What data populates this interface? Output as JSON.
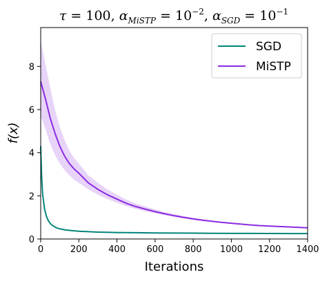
{
  "chart_data": {
    "type": "line",
    "title": "τ = 100, α_MiSTP = 10^−2, α_SGD = 10^−1",
    "title_parts": {
      "tau_sym": "τ",
      "tau_val": " = 100, ",
      "alpha1_sym": "α",
      "alpha1_sub": "MiSTP",
      "alpha1_eq": " = 10",
      "alpha1_exp": "−2",
      "sep": ", ",
      "alpha2_sym": "α",
      "alpha2_sub": "SGD",
      "alpha2_eq": " = 10",
      "alpha2_exp": "−1"
    },
    "xlabel": "Iterations",
    "ylabel": "f(x)",
    "xlim": [
      0,
      1400
    ],
    "ylim": [
      0,
      9.8
    ],
    "xticks": [
      0,
      200,
      400,
      600,
      800,
      1000,
      1200,
      1400
    ],
    "yticks": [
      0,
      2,
      4,
      6,
      8
    ],
    "grid": false,
    "legend_position": "top-right",
    "series": [
      {
        "name": "SGD",
        "color": "#00857a",
        "x": [
          0,
          5,
          10,
          20,
          30,
          40,
          50,
          60,
          80,
          100,
          130,
          160,
          200,
          250,
          300,
          400,
          500,
          600,
          700,
          800,
          900,
          1000,
          1100,
          1200,
          1300,
          1400
        ],
        "y": [
          4.3,
          2.9,
          2.1,
          1.4,
          1.05,
          0.85,
          0.72,
          0.64,
          0.53,
          0.47,
          0.42,
          0.39,
          0.36,
          0.34,
          0.32,
          0.3,
          0.29,
          0.28,
          0.275,
          0.27,
          0.265,
          0.26,
          0.258,
          0.255,
          0.252,
          0.25
        ]
      },
      {
        "name": "MiSTP",
        "color": "#8a2be2",
        "band_color": "#d9b8f5",
        "x": [
          0,
          25,
          50,
          75,
          100,
          125,
          150,
          175,
          200,
          250,
          300,
          350,
          400,
          450,
          500,
          550,
          600,
          650,
          700,
          750,
          800,
          850,
          900,
          950,
          1000,
          1050,
          1100,
          1150,
          1200,
          1250,
          1300,
          1350,
          1400
        ],
        "y": [
          7.3,
          6.5,
          5.6,
          4.9,
          4.3,
          3.85,
          3.5,
          3.25,
          3.05,
          2.6,
          2.3,
          2.05,
          1.85,
          1.65,
          1.5,
          1.38,
          1.27,
          1.17,
          1.08,
          1.0,
          0.93,
          0.87,
          0.82,
          0.77,
          0.73,
          0.69,
          0.65,
          0.62,
          0.6,
          0.58,
          0.56,
          0.54,
          0.52
        ],
        "y_lower": [
          5.7,
          5.1,
          4.4,
          3.9,
          3.5,
          3.2,
          2.95,
          2.75,
          2.6,
          2.3,
          2.05,
          1.85,
          1.68,
          1.52,
          1.39,
          1.28,
          1.19,
          1.1,
          1.02,
          0.95,
          0.89,
          0.83,
          0.78,
          0.74,
          0.7,
          0.66,
          0.63,
          0.6,
          0.58,
          0.56,
          0.54,
          0.52,
          0.5
        ],
        "y_upper": [
          9.2,
          8.1,
          7.0,
          6.0,
          5.2,
          4.6,
          4.1,
          3.75,
          3.5,
          2.95,
          2.6,
          2.3,
          2.05,
          1.82,
          1.64,
          1.5,
          1.37,
          1.25,
          1.15,
          1.06,
          0.98,
          0.92,
          0.86,
          0.8,
          0.76,
          0.72,
          0.68,
          0.65,
          0.62,
          0.6,
          0.58,
          0.56,
          0.54
        ]
      }
    ]
  }
}
